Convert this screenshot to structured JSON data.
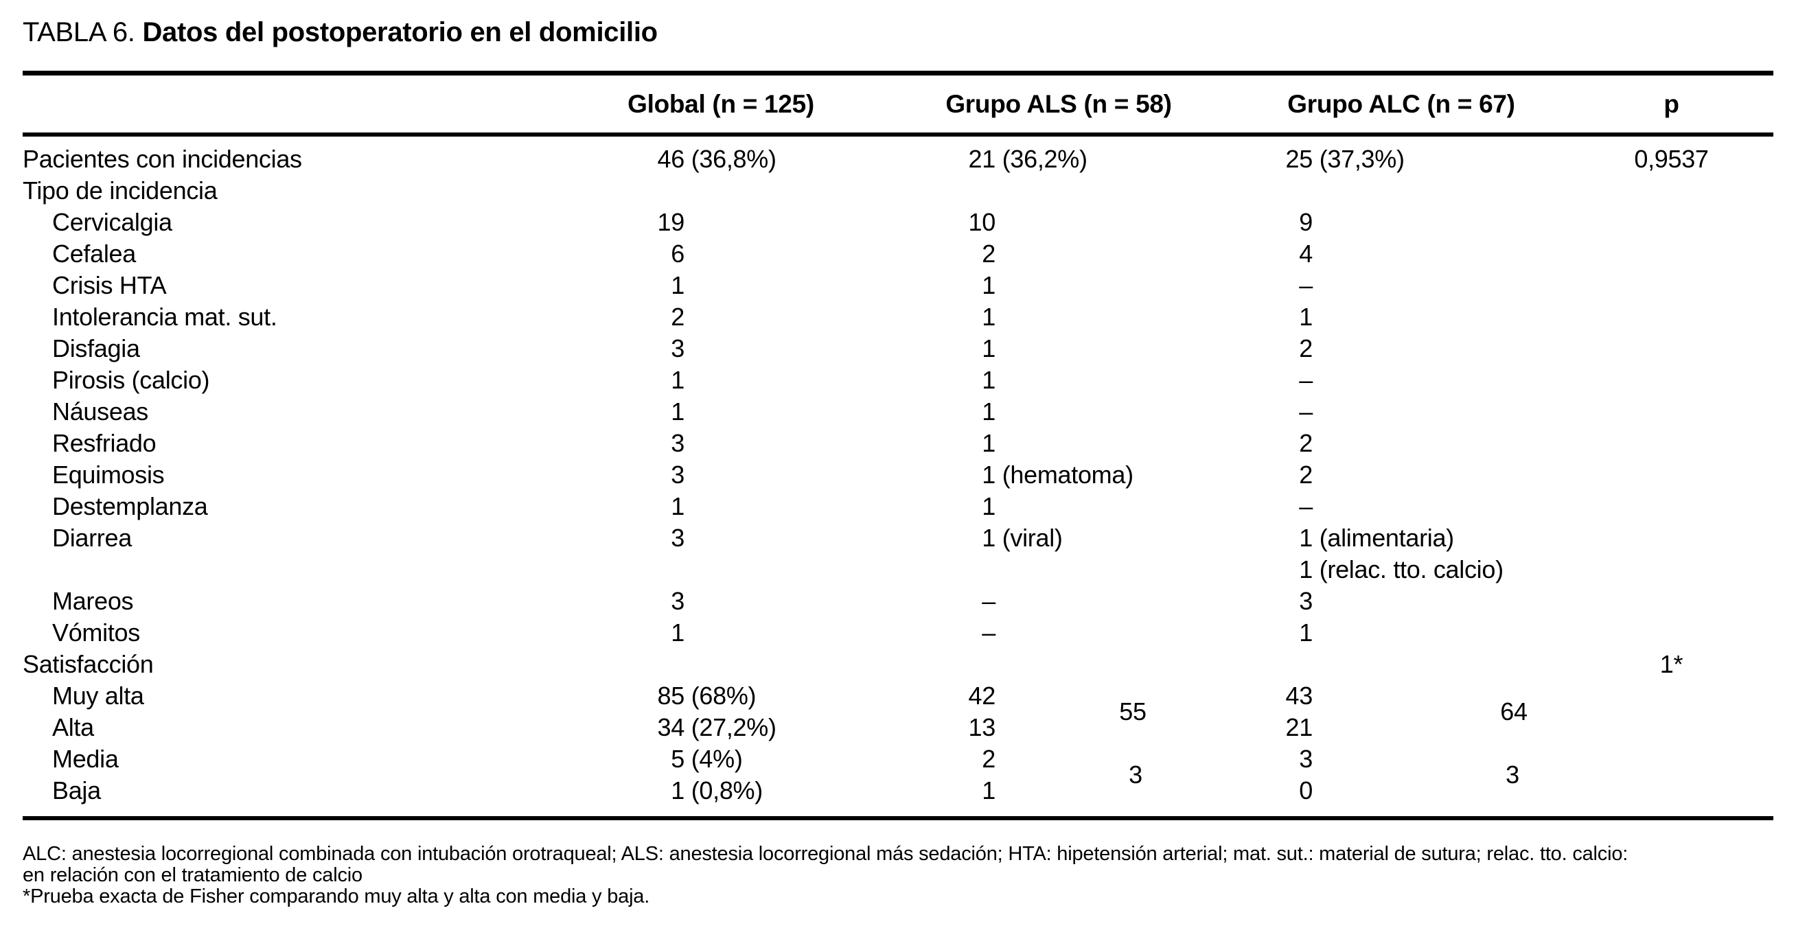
{
  "title": {
    "prefix": "TABLA 6.",
    "main": "Datos del postoperatorio en el domicilio"
  },
  "header": {
    "global": "Global (n = 125)",
    "als": "Grupo ALS (n = 58)",
    "alc": "Grupo ALC (n = 67)",
    "p": "p"
  },
  "rows": [
    {
      "label": "Pacientes con incidencias",
      "indent": false,
      "global": {
        "num": "46",
        "suf": " (36,8%)"
      },
      "als": {
        "num": "21",
        "suf": " (36,2%)"
      },
      "alc": {
        "num": "25",
        "suf": " (37,3%)"
      },
      "p": "0,9537"
    },
    {
      "label": "Tipo de incidencia",
      "indent": false
    },
    {
      "label": "Cervicalgia",
      "indent": true,
      "global": {
        "num": "19"
      },
      "als": {
        "num": "10"
      },
      "alc": {
        "num": "9"
      }
    },
    {
      "label": "Cefalea",
      "indent": true,
      "global": {
        "num": "6"
      },
      "als": {
        "num": "2"
      },
      "alc": {
        "num": "4"
      }
    },
    {
      "label": "Crisis HTA",
      "indent": true,
      "global": {
        "num": "1"
      },
      "als": {
        "num": "1"
      },
      "alc": {
        "num": "–"
      }
    },
    {
      "label": "Intolerancia mat. sut.",
      "indent": true,
      "global": {
        "num": "2"
      },
      "als": {
        "num": "1"
      },
      "alc": {
        "num": "1"
      }
    },
    {
      "label": "Disfagia",
      "indent": true,
      "global": {
        "num": "3"
      },
      "als": {
        "num": "1"
      },
      "alc": {
        "num": "2"
      }
    },
    {
      "label": "Pirosis (calcio)",
      "indent": true,
      "global": {
        "num": "1"
      },
      "als": {
        "num": "1"
      },
      "alc": {
        "num": "–"
      }
    },
    {
      "label": "Náuseas",
      "indent": true,
      "global": {
        "num": "1"
      },
      "als": {
        "num": "1"
      },
      "alc": {
        "num": "–"
      }
    },
    {
      "label": "Resfriado",
      "indent": true,
      "global": {
        "num": "3"
      },
      "als": {
        "num": "1"
      },
      "alc": {
        "num": "2"
      }
    },
    {
      "label": "Equimosis",
      "indent": true,
      "global": {
        "num": "3"
      },
      "als": {
        "num": "1",
        "suf": " (hematoma)"
      },
      "alc": {
        "num": "2"
      }
    },
    {
      "label": "Destemplanza",
      "indent": true,
      "global": {
        "num": "1"
      },
      "als": {
        "num": "1"
      },
      "alc": {
        "num": "–"
      }
    },
    {
      "label": "Diarrea",
      "indent": true,
      "global": {
        "num": "3"
      },
      "als": {
        "num": "1",
        "suf": " (viral)"
      },
      "alc": {
        "num": "1",
        "suf": " (alimentaria)",
        "line2": {
          "num": "1",
          "suf": " (relac. tto. calcio)"
        }
      }
    },
    {
      "label": "Mareos",
      "indent": true,
      "global": {
        "num": "3"
      },
      "als": {
        "num": "–"
      },
      "alc": {
        "num": "3"
      }
    },
    {
      "label": "Vómitos",
      "indent": true,
      "global": {
        "num": "1"
      },
      "als": {
        "num": "–"
      },
      "alc": {
        "num": "1"
      }
    },
    {
      "label": "Satisfacción",
      "indent": false,
      "p": "1*"
    },
    {
      "label": "Muy alta",
      "indent": true,
      "global": {
        "num": "85",
        "suf": " (68%)"
      },
      "als": {
        "num": "42"
      },
      "alc": {
        "num": "43"
      }
    },
    {
      "label": "Alta",
      "indent": true,
      "global": {
        "num": "34",
        "suf": " (27,2%)"
      },
      "als": {
        "num": "13"
      },
      "alc": {
        "num": "21"
      }
    },
    {
      "label": "Media",
      "indent": true,
      "global": {
        "num": "5",
        "suf": " (4%)"
      },
      "als": {
        "num": "2"
      },
      "alc": {
        "num": "3"
      }
    },
    {
      "label": "Baja",
      "indent": true,
      "global": {
        "num": "1",
        "suf": " (0,8%)"
      },
      "als": {
        "num": "1"
      },
      "alc": {
        "num": "0"
      }
    }
  ],
  "aggregates": {
    "als_muy_alta_plus_alta": "55",
    "alc_muy_alta_plus_alta": "64",
    "als_media_plus_baja": "3",
    "alc_media_plus_baja": "3"
  },
  "footnotes": [
    "ALC: anestesia locorregional combinada con intubación orotraqueal; ALS: anestesia locorregional más sedación; HTA: hipetensión arterial; mat. sut.: material de sutura; relac. tto. calcio:",
    "en relación con el tratamiento de calcio",
    "*Prueba exacta de Fisher comparando muy alta y alta con media y baja."
  ]
}
